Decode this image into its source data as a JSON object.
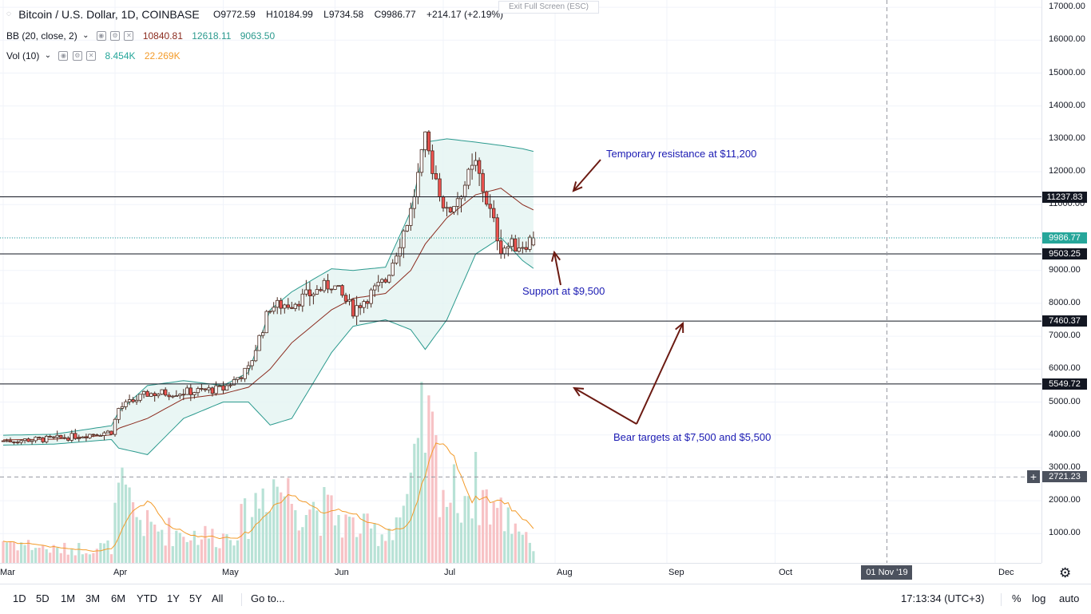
{
  "legend": {
    "symbol": "Bitcoin / U.S. Dollar, 1D, COINBASE",
    "open": "O9772.59",
    "high": "H10184.99",
    "low": "L9734.58",
    "close": "C9986.77",
    "change": "+214.17 (+2.19%)",
    "bb_label": "BB (20, close, 2)",
    "bb_mid": "10840.81",
    "bb_upper": "12618.11",
    "bb_lower": "9063.50",
    "vol_label": "Vol (10)",
    "vol_value": "8.454K",
    "vol_ma": "22.269K"
  },
  "exit_fullscreen": "Exit Full Screen (ESC)",
  "price_axis": {
    "ticks": [
      "17000.00",
      "16000.00",
      "15000.00",
      "14000.00",
      "13000.00",
      "12000.00",
      "11000.00",
      "10000.00",
      "9000.00",
      "8000.00",
      "7000.00",
      "6000.00",
      "5000.00",
      "4000.00",
      "3000.00",
      "2000.00",
      "1000.00"
    ],
    "labels": {
      "r1": "11237.83",
      "last": "9986.77",
      "s1": "9503.25",
      "s2": "7460.37",
      "s3": "5549.72",
      "cross": "2721.23"
    }
  },
  "time_axis": {
    "labels": [
      "Mar",
      "Apr",
      "May",
      "Jun",
      "Jul",
      "Aug",
      "Sep",
      "Oct",
      "Dec"
    ],
    "highlight": "01 Nov '19"
  },
  "annotations": {
    "resistance": "Temporary resistance at $11,200",
    "support": "Support at $9,500",
    "bear": "Bear targets at $7,500 and $5,500"
  },
  "bottombar": {
    "timeframes": [
      "1D",
      "5D",
      "1M",
      "3M",
      "6M",
      "YTD",
      "1Y",
      "5Y",
      "All"
    ],
    "goto": "Go to...",
    "clock": "17:13:34 (UTC+3)",
    "percent": "%",
    "log": "log",
    "auto": "auto"
  },
  "colors": {
    "up": "#26a69a",
    "down": "#ef5350",
    "bb": "#2b9a8e",
    "bb_fill": "#e3f4f1",
    "basis": "#8b2b1e",
    "vol_up": "#b8e2d6",
    "vol_down": "#f7c2c5",
    "vol_ma": "#f39b2a",
    "annotation": "#1b1bb3",
    "arrow": "#6b1a12"
  },
  "chart_data": {
    "type": "candlestick",
    "title": "Bitcoin / U.S. Dollar, 1D, COINBASE",
    "ylim": [
      0,
      17200
    ],
    "x_range": [
      "2019-03-01",
      "2019-12-16"
    ],
    "horizontal_levels": [
      11237.83,
      9503.25,
      7460.37,
      5549.72
    ],
    "crosshair": {
      "price": 2721.23,
      "date": "2019-11-01"
    },
    "anchors": [
      {
        "date": "2019-03-01",
        "close": 3820,
        "upper": 3990,
        "lower": 3690,
        "basis": 3850,
        "vol": 700
      },
      {
        "date": "2019-03-15",
        "close": 3880,
        "upper": 4020,
        "lower": 3720,
        "basis": 3870,
        "vol": 400
      },
      {
        "date": "2019-03-31",
        "close": 4100,
        "upper": 4280,
        "lower": 3860,
        "basis": 4000,
        "vol": 500
      },
      {
        "date": "2019-04-02",
        "close": 4800,
        "upper": 4700,
        "lower": 3600,
        "basis": 4200,
        "vol": 2100
      },
      {
        "date": "2019-04-10",
        "close": 5250,
        "upper": 5500,
        "lower": 3400,
        "basis": 4500,
        "vol": 1100
      },
      {
        "date": "2019-04-20",
        "close": 5300,
        "upper": 5650,
        "lower": 4500,
        "basis": 5100,
        "vol": 900
      },
      {
        "date": "2019-05-01",
        "close": 5400,
        "upper": 5500,
        "lower": 5000,
        "basis": 5250,
        "vol": 800
      },
      {
        "date": "2019-05-08",
        "close": 6000,
        "upper": 5900,
        "lower": 5000,
        "basis": 5450,
        "vol": 1400
      },
      {
        "date": "2019-05-14",
        "close": 7900,
        "upper": 7800,
        "lower": 4300,
        "basis": 6000,
        "vol": 2600
      },
      {
        "date": "2019-05-20",
        "close": 8000,
        "upper": 8350,
        "lower": 4500,
        "basis": 6800,
        "vol": 2000
      },
      {
        "date": "2019-05-31",
        "close": 8600,
        "upper": 9050,
        "lower": 6500,
        "basis": 7800,
        "vol": 1500
      },
      {
        "date": "2019-06-06",
        "close": 7800,
        "upper": 9000,
        "lower": 7300,
        "basis": 8150,
        "vol": 1100
      },
      {
        "date": "2019-06-15",
        "close": 8700,
        "upper": 9100,
        "lower": 7500,
        "basis": 8300,
        "vol": 900
      },
      {
        "date": "2019-06-22",
        "close": 10800,
        "upper": 10800,
        "lower": 7200,
        "basis": 9000,
        "vol": 2000
      },
      {
        "date": "2019-06-26",
        "close": 12900,
        "upper": 12900,
        "lower": 6600,
        "basis": 9800,
        "vol": 4300
      },
      {
        "date": "2019-07-02",
        "close": 10700,
        "upper": 13000,
        "lower": 7500,
        "basis": 10600,
        "vol": 2000
      },
      {
        "date": "2019-07-10",
        "close": 12200,
        "upper": 12900,
        "lower": 9500,
        "basis": 11300,
        "vol": 2300
      },
      {
        "date": "2019-07-17",
        "close": 9700,
        "upper": 12800,
        "lower": 10000,
        "basis": 11500,
        "vol": 1500
      },
      {
        "date": "2019-07-23",
        "close": 9800,
        "upper": 12700,
        "lower": 9300,
        "basis": 11000,
        "vol": 1100
      },
      {
        "date": "2019-07-26",
        "close": 9986.77,
        "upper": 12618.11,
        "lower": 9063.5,
        "basis": 10840.81,
        "vol": 500
      }
    ]
  }
}
